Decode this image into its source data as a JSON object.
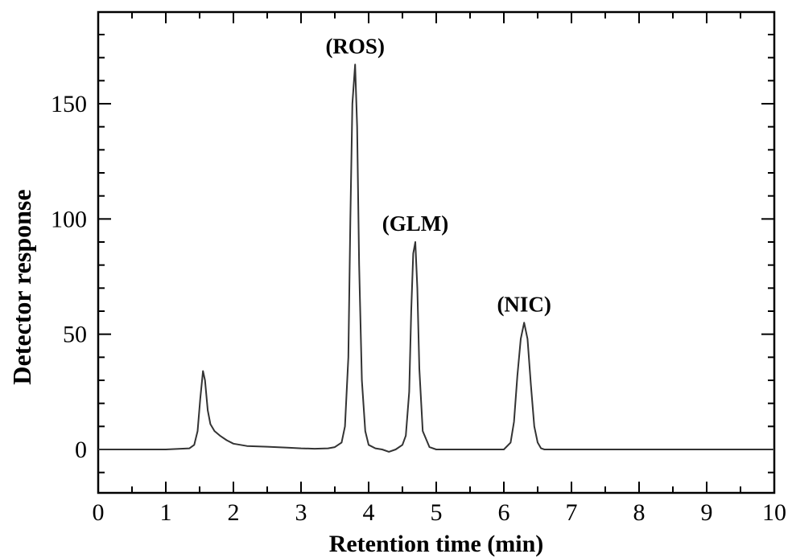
{
  "chart_data": {
    "type": "line",
    "title": "",
    "xlabel": "Retention time (min)",
    "ylabel": "Detector response",
    "xlim": [
      0,
      10
    ],
    "ylim": [
      -20,
      190
    ],
    "x_ticks": [
      0,
      1,
      2,
      3,
      4,
      5,
      6,
      7,
      8,
      9,
      10
    ],
    "x_tick_labels": [
      "0",
      "1",
      "2",
      "3",
      "4",
      "5",
      "6",
      "7",
      "8",
      "9",
      "10"
    ],
    "y_ticks": [
      0,
      50,
      100,
      150
    ],
    "y_tick_labels": [
      "0",
      "50",
      "100",
      "150"
    ],
    "grid": false,
    "series": [
      {
        "color": "#333333",
        "x": [
          0,
          0.5,
          1.0,
          1.35,
          1.42,
          1.47,
          1.51,
          1.55,
          1.58,
          1.62,
          1.66,
          1.72,
          1.8,
          1.9,
          2.0,
          2.2,
          2.5,
          2.8,
          3.0,
          3.2,
          3.4,
          3.5,
          3.6,
          3.65,
          3.7,
          3.73,
          3.76,
          3.8,
          3.83,
          3.86,
          3.9,
          3.95,
          4.0,
          4.1,
          4.2,
          4.3,
          4.4,
          4.5,
          4.55,
          4.6,
          4.63,
          4.66,
          4.69,
          4.72,
          4.75,
          4.8,
          4.9,
          5.0,
          5.5,
          6.0,
          6.1,
          6.15,
          6.2,
          6.25,
          6.3,
          6.35,
          6.4,
          6.45,
          6.5,
          6.55,
          6.6,
          7.0,
          8.0,
          9.0,
          10.0
        ],
        "y": [
          0,
          0,
          0,
          0.5,
          2,
          8,
          22,
          34,
          30,
          17,
          11,
          8,
          6,
          4,
          2.5,
          1.5,
          1.2,
          0.8,
          0.5,
          0.3,
          0.5,
          1,
          3,
          10,
          40,
          100,
          150,
          167,
          140,
          80,
          30,
          8,
          2,
          0.5,
          0,
          -1,
          0,
          2,
          6,
          25,
          60,
          85,
          90,
          70,
          35,
          8,
          1,
          0,
          0,
          0,
          3,
          12,
          32,
          48,
          55,
          48,
          28,
          10,
          3,
          0.5,
          0,
          0,
          0,
          0,
          0
        ]
      }
    ],
    "annotations": [
      {
        "text": "(ROS)",
        "x": 3.8,
        "y": 167
      },
      {
        "text": "(GLM)",
        "x": 4.69,
        "y": 90
      },
      {
        "text": "(NIC)",
        "x": 6.3,
        "y": 55
      }
    ]
  }
}
